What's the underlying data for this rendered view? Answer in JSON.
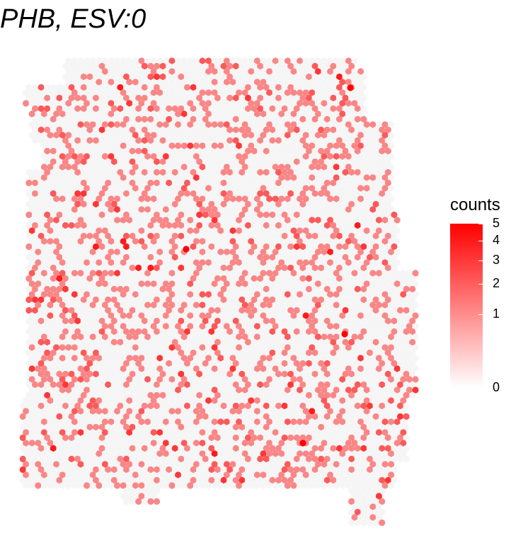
{
  "chart_data": {
    "type": "scatter",
    "title": "PHB, ESV:0",
    "xlabel": "",
    "ylabel": "",
    "gene": "PHB",
    "description": "spatial spot expression map; each spot colored by counts on a square-root color scale from light grey/white (0) to red (5)",
    "color_scale": {
      "low": "#f5f5f5",
      "high": "#ff0000",
      "transform": "sqrt",
      "range": [
        0,
        5
      ]
    },
    "legend": {
      "title": "counts",
      "position": "right",
      "ticks": [
        5,
        4,
        3,
        2,
        1,
        0
      ]
    },
    "grid": false,
    "spot_summary": {
      "max_count": 5,
      "min_count": 0,
      "total_spots_approx": 3400,
      "expressed_fraction_approx": 0.32
    }
  }
}
